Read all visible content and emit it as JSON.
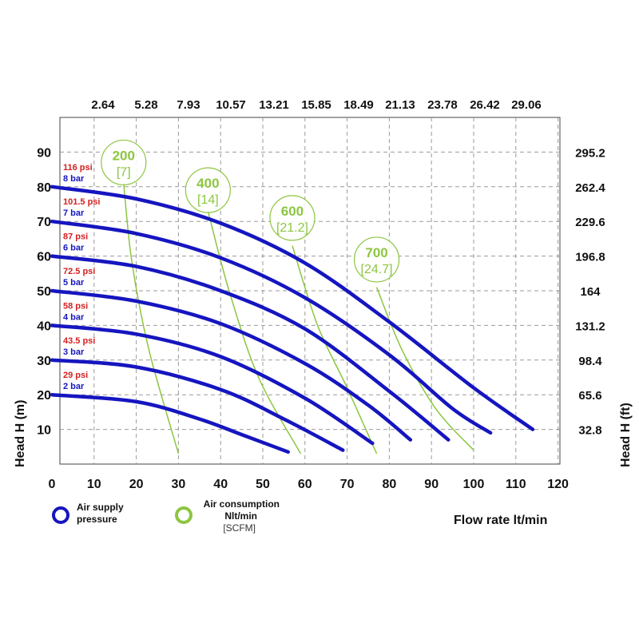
{
  "chart_data": {
    "type": "line",
    "xlabel": "Flow rate  lt/min",
    "ylabel_left": "Head H (m)",
    "ylabel_right": "Head H (ft)",
    "xlim": [
      0,
      120
    ],
    "ylim": [
      0,
      100
    ],
    "x_ticks": [
      0,
      10,
      20,
      30,
      40,
      50,
      60,
      70,
      80,
      90,
      100,
      110,
      120
    ],
    "y_ticks": [
      10,
      20,
      30,
      40,
      50,
      60,
      70,
      80,
      90
    ],
    "top_axis_ticks": [
      "2.64",
      "5.28",
      "7.93",
      "10.57",
      "13.21",
      "15.85",
      "18.49",
      "21.13",
      "23.78",
      "26.42",
      "29.06"
    ],
    "right_axis_ticks": [
      "32.8",
      "65.6",
      "98.4",
      "131.2",
      "164",
      "196.8",
      "229.6",
      "262.4",
      "295.2"
    ],
    "grid": true,
    "series": [
      {
        "name": "8 bar",
        "psi": "116 psi",
        "color": "#1515c0",
        "points": [
          [
            0,
            80
          ],
          [
            20,
            76.5
          ],
          [
            40,
            69.5
          ],
          [
            60,
            58
          ],
          [
            80,
            41
          ],
          [
            100,
            22
          ],
          [
            114,
            10
          ]
        ]
      },
      {
        "name": "7 bar",
        "psi": "101.5 psi",
        "color": "#1515c0",
        "points": [
          [
            0,
            70
          ],
          [
            20,
            66.5
          ],
          [
            40,
            59.5
          ],
          [
            60,
            48
          ],
          [
            80,
            31.5
          ],
          [
            95,
            16
          ],
          [
            104,
            9
          ]
        ]
      },
      {
        "name": "6 bar",
        "psi": "87 psi",
        "color": "#1515c0",
        "points": [
          [
            0,
            60
          ],
          [
            20,
            57
          ],
          [
            40,
            50
          ],
          [
            60,
            39
          ],
          [
            80,
            21
          ],
          [
            94,
            7
          ]
        ]
      },
      {
        "name": "5 bar",
        "psi": "72.5 psi",
        "color": "#1515c0",
        "points": [
          [
            0,
            50
          ],
          [
            20,
            47
          ],
          [
            40,
            40.5
          ],
          [
            60,
            29
          ],
          [
            75,
            17
          ],
          [
            85,
            7
          ]
        ]
      },
      {
        "name": "4 bar",
        "psi": "58 psi",
        "color": "#1515c0",
        "points": [
          [
            0,
            40
          ],
          [
            20,
            37.5
          ],
          [
            40,
            31
          ],
          [
            60,
            19
          ],
          [
            76,
            6
          ]
        ]
      },
      {
        "name": "3 bar",
        "psi": "43.5 psi",
        "color": "#1515c0",
        "points": [
          [
            0,
            30
          ],
          [
            20,
            28
          ],
          [
            40,
            21.5
          ],
          [
            55,
            13
          ],
          [
            69,
            4
          ]
        ]
      },
      {
        "name": "2 bar",
        "psi": "29 psi",
        "color": "#1515c0",
        "points": [
          [
            0,
            20
          ],
          [
            20,
            18
          ],
          [
            35,
            13
          ],
          [
            45,
            8.5
          ],
          [
            56,
            3.5
          ]
        ]
      }
    ],
    "air_consumption": [
      {
        "label": "200",
        "scfm": "[7]",
        "label_xy": [
          17,
          87
        ],
        "points": [
          [
            17,
            81
          ],
          [
            19,
            58
          ],
          [
            23,
            33
          ],
          [
            30,
            3
          ]
        ]
      },
      {
        "label": "400",
        "scfm": "[14]",
        "label_xy": [
          37,
          79
        ],
        "points": [
          [
            37,
            73
          ],
          [
            42,
            50
          ],
          [
            49,
            25
          ],
          [
            59,
            3
          ]
        ]
      },
      {
        "label": "600",
        "scfm": "[21.2]",
        "label_xy": [
          57,
          71
        ],
        "points": [
          [
            57,
            63
          ],
          [
            63,
            40
          ],
          [
            70,
            22
          ],
          [
            77,
            3
          ]
        ]
      },
      {
        "label": "700",
        "scfm": "[24.7]",
        "label_xy": [
          77,
          59
        ],
        "points": [
          [
            77,
            51
          ],
          [
            83,
            33
          ],
          [
            91,
            16
          ],
          [
            100,
            4
          ]
        ]
      }
    ]
  },
  "legend": {
    "supply_label_1": "Air supply",
    "supply_label_2": "pressure",
    "consumption_label_1": "Air consumption",
    "consumption_label_2": "Nlt/min",
    "consumption_label_3": "[SCFM]",
    "supply_color": "#1515c0",
    "consumption_color": "#8cc63f"
  }
}
